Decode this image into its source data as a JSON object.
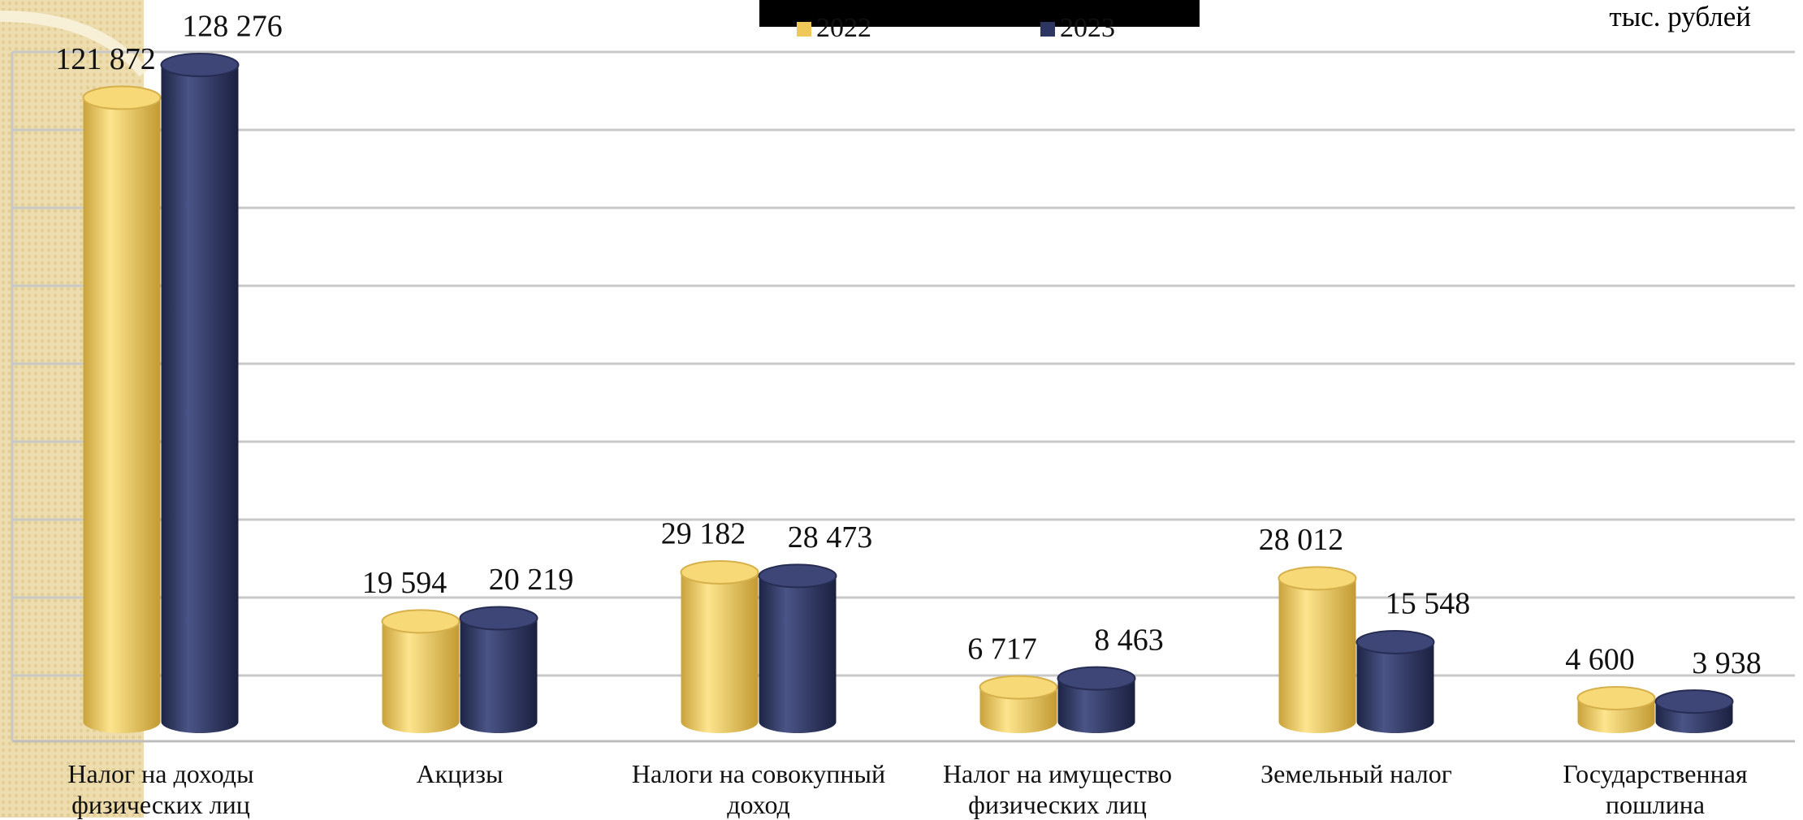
{
  "chart_data": {
    "type": "bar3d",
    "unit_label": "тыс. рублей",
    "categories": [
      "Налог на доходы физических лиц",
      "Акцизы",
      "Налоги на совокупный доход",
      "Налог на имущество физических лиц",
      "Земельный налог",
      "Государственная пошлина"
    ],
    "series": [
      {
        "name": "2022",
        "color": "#f0c85a",
        "values": [
          121872,
          19594,
          29182,
          6717,
          28012,
          4600
        ],
        "value_labels": [
          "121 872",
          "19 594",
          "29 182",
          "6 717",
          "28 012",
          "4 600"
        ]
      },
      {
        "name": "2023",
        "color": "#2d3561",
        "values": [
          128276,
          20219,
          28473,
          8463,
          15548,
          3938
        ],
        "value_labels": [
          "128 276",
          "20 219",
          "28 473",
          "8 463",
          "15 548",
          "3 938"
        ]
      }
    ]
  }
}
